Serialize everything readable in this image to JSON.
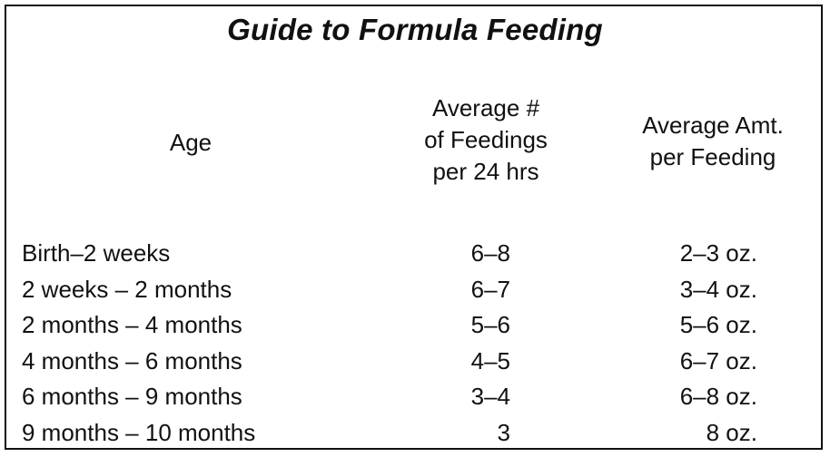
{
  "title": "Guide to Formula Feeding",
  "headers": {
    "age": "Age",
    "feedings": "Average #\nof Feedings\nper 24 hrs",
    "amount": "Average Amt.\nper Feeding"
  },
  "rows": [
    {
      "age": "Birth–2 weeks",
      "feedings": "6–8",
      "amount": "2–3 oz."
    },
    {
      "age": "2 weeks – 2 months",
      "feedings": "6–7",
      "amount": "3–4 oz."
    },
    {
      "age": "2 months – 4 months",
      "feedings": "5–6",
      "amount": "5–6 oz."
    },
    {
      "age": "4 months – 6 months",
      "feedings": "4–5",
      "amount": "6–7 oz."
    },
    {
      "age": "6 months – 9 months",
      "feedings": "3–4",
      "amount": "6–8 oz."
    },
    {
      "age": "9 months – 10 months",
      "feedings": "3",
      "amount": "8 oz."
    }
  ]
}
